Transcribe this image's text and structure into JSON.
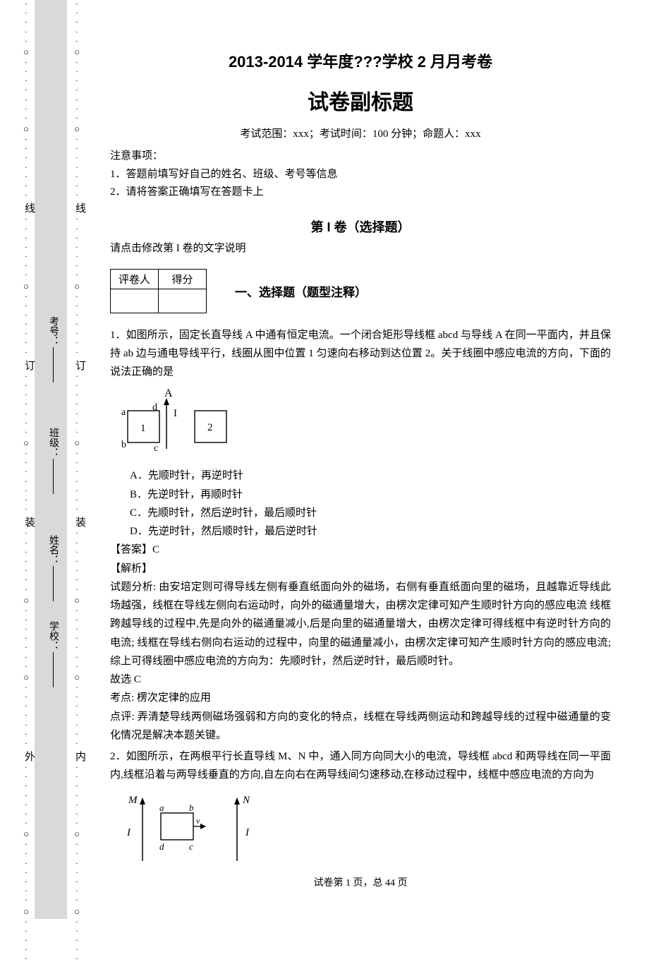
{
  "margin": {
    "labels": [
      "线",
      "订",
      "装",
      "外",
      "内"
    ],
    "fields": [
      {
        "label": "考号："
      },
      {
        "label": "班级："
      },
      {
        "label": "姓名："
      },
      {
        "label": "学校："
      }
    ]
  },
  "titles": {
    "main": "2013-2014 学年度???学校 2 月月考卷",
    "sub": "试卷副标题",
    "info": "考试范围：xxx；考试时间：100 分钟；命题人：xxx"
  },
  "notice": {
    "head": "注意事项：",
    "item1": "1．答题前填写好自己的姓名、班级、考号等信息",
    "item2": "2．请将答案正确填写在答题卡上"
  },
  "section1": {
    "head": "第 I 卷（选择题）",
    "desc": "请点击修改第 I 卷的文字说明",
    "scorer": "评卷人",
    "score": "得分",
    "type": "一、选择题（题型注释）"
  },
  "q1": {
    "stem": "1．如图所示，固定长直导线 A 中通有恒定电流。一个闭合矩形导线框 abcd 与导线 A 在同一平面内，并且保持 ab 边与通电导线平行，线圈从图中位置 1 匀速向右移动到达位置 2。关于线圈中感应电流的方向，下面的说法正确的是",
    "fig": {
      "A": "A",
      "I": "I",
      "a": "a",
      "b": "b",
      "c": "c",
      "d": "d",
      "one": "1",
      "two": "2"
    },
    "optA": "A．先顺时针，再逆时针",
    "optB": "B．先逆时针，再顺时针",
    "optC": "C．先顺时针，然后逆时针，最后顺时针",
    "optD": "D．先逆时针，然后顺时针，最后逆时针",
    "ans": "【答案】C",
    "exp_head": "【解析】",
    "exp_body": "试题分析: 由安培定则可得导线左侧有垂直纸面向外的磁场，右侧有垂直纸面向里的磁场，且越靠近导线此场越强，线框在导线左侧向右运动时，向外的磁通量增大，由楞次定律可知产生顺时针方向的感应电流 线框跨越导线的过程中,先是向外的磁通量减小,后是向里的磁通量增大，由楞次定律可得线框中有逆时针方向的电流; 线框在导线右侧向右运动的过程中，向里的磁通量减小，由楞次定律可知产生顺时针方向的感应电流;综上可得线圈中感应电流的方向为：先顺时针，然后逆时针，最后顺时针。",
    "exp_pick": "故选 C",
    "exp_topic": "考点: 楞次定律的应用",
    "exp_comment": "点评: 弄清楚导线两侧磁场强弱和方向的变化的特点，线框在导线两侧运动和跨越导线的过程中磁通量的变化情况是解决本题关键。"
  },
  "q2": {
    "stem": "2．如图所示，在两根平行长直导线 M、N 中，通入同方向同大小的电流，导线框 abcd 和两导线在同一平面内,线框沿着与两导线垂直的方向,自左向右在两导线间匀速移动,在移动过程中，线框中感应电流的方向为",
    "fig": {
      "M": "M",
      "N": "N",
      "I": "I",
      "a": "a",
      "b": "b",
      "c": "c",
      "d": "d",
      "v": "v"
    }
  },
  "footer": {
    "page": "试卷第 1 页，总 44 页"
  },
  "colors": {
    "strip": "#d9d9d9",
    "text": "#000000",
    "bg": "#ffffff"
  }
}
